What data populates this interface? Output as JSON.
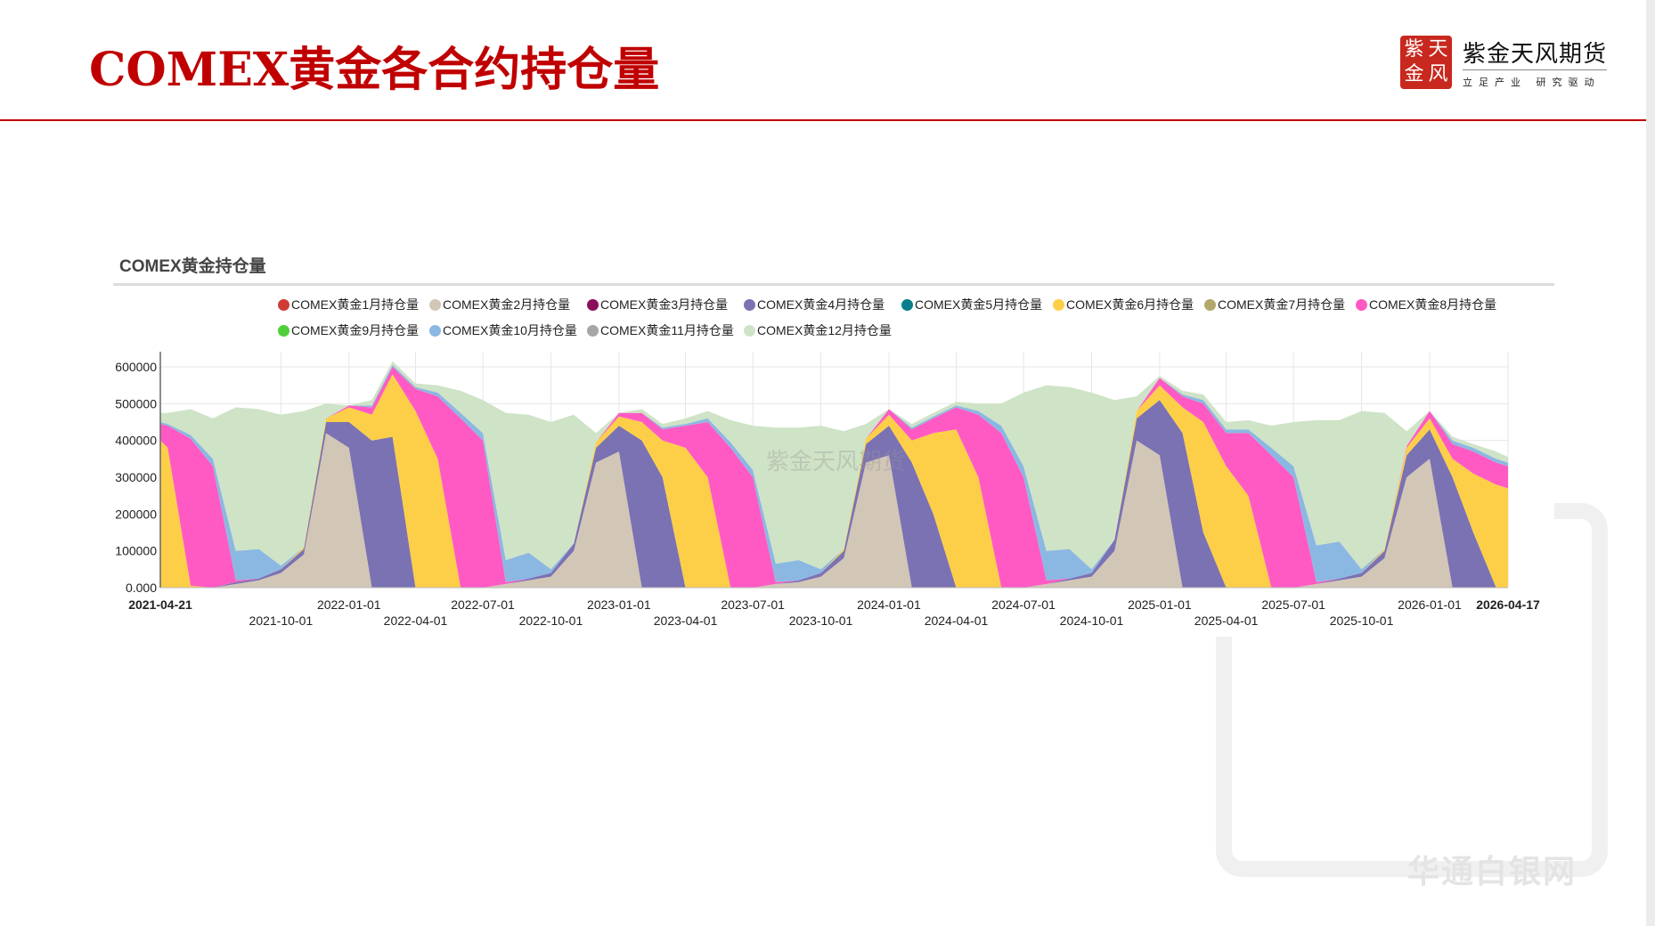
{
  "header": {
    "title": "COMEX黄金各合约持仓量"
  },
  "logo": {
    "seal_chars": [
      "紫",
      "天",
      "金",
      "风"
    ],
    "brand": "紫金天风期货",
    "slogan": "立足产业 研究驱动"
  },
  "watermark": {
    "chart": "紫金天风期货",
    "site": "华通白银网"
  },
  "colors": {
    "accent": "#c00000"
  },
  "chart_data": {
    "type": "area",
    "stacked": true,
    "title": "COMEX黄金持仓量",
    "xlabel": "",
    "ylabel": "",
    "ylim": [
      0,
      650000
    ],
    "xlim": [
      "2021-04-21",
      "2026-04-17"
    ],
    "grid": true,
    "legend_position": "top",
    "y_ticks": [
      "0.000",
      "100000",
      "200000",
      "300000",
      "400000",
      "500000",
      "600000"
    ],
    "y_tick_values": [
      0,
      100000,
      200000,
      300000,
      400000,
      500000,
      600000
    ],
    "x_ticks_row1": [
      "2021-04-21",
      "2022-01-01",
      "2022-07-01",
      "2023-01-01",
      "2023-07-01",
      "2024-01-01",
      "2024-07-01",
      "2025-01-01",
      "2025-07-01",
      "2026-01-01",
      "2026-04-17"
    ],
    "x_ticks_row2": [
      "2021-10-01",
      "2022-04-01",
      "2022-10-01",
      "2023-04-01",
      "2023-10-01",
      "2024-04-01",
      "2024-10-01",
      "2025-04-01",
      "2025-10-01"
    ],
    "x": [
      "2021-04-21",
      "2021-05-01",
      "2021-06-01",
      "2021-07-01",
      "2021-08-01",
      "2021-09-01",
      "2021-10-01",
      "2021-11-01",
      "2021-12-01",
      "2022-01-01",
      "2022-02-01",
      "2022-03-01",
      "2022-04-01",
      "2022-05-01",
      "2022-06-01",
      "2022-07-01",
      "2022-08-01",
      "2022-09-01",
      "2022-10-01",
      "2022-11-01",
      "2022-12-01",
      "2023-01-01",
      "2023-02-01",
      "2023-03-01",
      "2023-04-01",
      "2023-05-01",
      "2023-06-01",
      "2023-07-01",
      "2023-08-01",
      "2023-09-01",
      "2023-10-01",
      "2023-11-01",
      "2023-12-01",
      "2024-01-01",
      "2024-02-01",
      "2024-03-01",
      "2024-04-01",
      "2024-05-01",
      "2024-06-01",
      "2024-07-01",
      "2024-08-01",
      "2024-09-01",
      "2024-10-01",
      "2024-11-01",
      "2024-12-01",
      "2025-01-01",
      "2025-02-01",
      "2025-03-01",
      "2025-04-01",
      "2025-05-01",
      "2025-06-01",
      "2025-07-01",
      "2025-08-01",
      "2025-09-01",
      "2025-10-01",
      "2025-11-01",
      "2025-12-01",
      "2026-01-01",
      "2026-02-01",
      "2026-03-01",
      "2026-04-01",
      "2026-04-17"
    ],
    "series": [
      {
        "name": "COMEX黄金1月持仓量",
        "color": "#d03b36",
        "values": [
          0,
          0,
          0,
          0,
          0,
          0,
          0,
          0,
          0,
          0,
          0,
          0,
          0,
          0,
          0,
          0,
          0,
          0,
          0,
          0,
          0,
          0,
          0,
          0,
          0,
          0,
          0,
          0,
          0,
          0,
          0,
          0,
          0,
          0,
          0,
          0,
          0,
          0,
          0,
          0,
          0,
          0,
          0,
          0,
          0,
          0,
          0,
          0,
          0,
          0,
          0,
          0,
          0,
          0,
          0,
          0,
          0,
          0,
          0,
          0,
          0,
          0
        ]
      },
      {
        "name": "COMEX黄金2月持仓量",
        "color": "#d2c6b6",
        "values": [
          0,
          0,
          0,
          0,
          10000,
          20000,
          40000,
          90000,
          420000,
          380000,
          0,
          0,
          0,
          0,
          0,
          0,
          10000,
          20000,
          30000,
          100000,
          340000,
          370000,
          0,
          0,
          0,
          0,
          0,
          0,
          10000,
          15000,
          30000,
          80000,
          340000,
          360000,
          0,
          0,
          0,
          0,
          0,
          0,
          10000,
          20000,
          30000,
          100000,
          400000,
          360000,
          0,
          0,
          0,
          0,
          0,
          0,
          10000,
          20000,
          30000,
          80000,
          300000,
          350000,
          0,
          0,
          0,
          0
        ]
      },
      {
        "name": "COMEX黄金3月持仓量",
        "color": "#8b0f5a",
        "values": [
          0,
          0,
          0,
          0,
          0,
          0,
          0,
          0,
          0,
          0,
          0,
          0,
          0,
          0,
          0,
          0,
          0,
          0,
          0,
          0,
          0,
          0,
          0,
          0,
          0,
          0,
          0,
          0,
          0,
          0,
          0,
          0,
          0,
          0,
          0,
          0,
          0,
          0,
          0,
          0,
          0,
          0,
          0,
          0,
          0,
          0,
          0,
          0,
          0,
          0,
          0,
          0,
          0,
          0,
          0,
          0,
          0,
          0,
          0,
          0,
          0,
          0
        ]
      },
      {
        "name": "COMEX黄金4月持仓量",
        "color": "#7b72b3",
        "values": [
          0,
          0,
          0,
          0,
          5000,
          5000,
          10000,
          15000,
          30000,
          70000,
          400000,
          410000,
          0,
          0,
          0,
          0,
          0,
          5000,
          10000,
          20000,
          40000,
          70000,
          400000,
          300000,
          0,
          0,
          0,
          0,
          0,
          5000,
          10000,
          20000,
          50000,
          80000,
          340000,
          200000,
          0,
          0,
          0,
          0,
          0,
          5000,
          10000,
          30000,
          60000,
          150000,
          420000,
          150000,
          0,
          0,
          0,
          0,
          0,
          5000,
          10000,
          20000,
          60000,
          80000,
          300000,
          150000,
          0,
          0
        ]
      },
      {
        "name": "COMEX黄金5月持仓量",
        "color": "#0a7f8a",
        "values": [
          0,
          0,
          0,
          0,
          0,
          0,
          0,
          0,
          0,
          0,
          0,
          0,
          0,
          0,
          0,
          0,
          0,
          0,
          0,
          0,
          0,
          0,
          0,
          0,
          0,
          0,
          0,
          0,
          0,
          0,
          0,
          0,
          0,
          0,
          0,
          0,
          0,
          0,
          0,
          0,
          0,
          0,
          0,
          0,
          0,
          0,
          0,
          0,
          0,
          0,
          0,
          0,
          0,
          0,
          0,
          0,
          0,
          0,
          0,
          0,
          0,
          0
        ]
      },
      {
        "name": "COMEX黄金6月持仓量",
        "color": "#fdcf48",
        "values": [
          400000,
          380000,
          5000,
          0,
          0,
          0,
          0,
          5000,
          10000,
          40000,
          70000,
          170000,
          480000,
          350000,
          0,
          0,
          0,
          0,
          0,
          0,
          15000,
          25000,
          50000,
          100000,
          380000,
          300000,
          0,
          0,
          0,
          0,
          0,
          5000,
          15000,
          30000,
          60000,
          220000,
          430000,
          300000,
          0,
          0,
          0,
          0,
          0,
          0,
          20000,
          40000,
          70000,
          300000,
          330000,
          250000,
          0,
          0,
          0,
          0,
          0,
          5000,
          20000,
          30000,
          50000,
          160000,
          280000,
          270000
        ]
      },
      {
        "name": "COMEX黄金7月持仓量",
        "color": "#b3a76b",
        "values": [
          0,
          0,
          0,
          0,
          0,
          0,
          0,
          0,
          0,
          0,
          0,
          0,
          0,
          0,
          0,
          0,
          0,
          0,
          0,
          0,
          0,
          0,
          0,
          0,
          0,
          0,
          0,
          0,
          0,
          0,
          0,
          0,
          0,
          0,
          0,
          0,
          0,
          0,
          0,
          0,
          0,
          0,
          0,
          0,
          0,
          0,
          0,
          0,
          0,
          0,
          0,
          0,
          0,
          0,
          0,
          0,
          0,
          0,
          0,
          0,
          0,
          0
        ]
      },
      {
        "name": "COMEX黄金8月持仓量",
        "color": "#ff5ac3",
        "values": [
          45000,
          60000,
          400000,
          330000,
          5000,
          0,
          0,
          0,
          0,
          5000,
          20000,
          20000,
          60000,
          170000,
          460000,
          400000,
          5000,
          0,
          0,
          0,
          0,
          10000,
          25000,
          30000,
          60000,
          150000,
          380000,
          300000,
          5000,
          0,
          0,
          0,
          0,
          15000,
          30000,
          40000,
          60000,
          170000,
          420000,
          300000,
          10000,
          0,
          0,
          0,
          0,
          20000,
          30000,
          50000,
          90000,
          170000,
          360000,
          300000,
          5000,
          0,
          0,
          0,
          5000,
          20000,
          40000,
          60000,
          60000,
          60000
        ]
      },
      {
        "name": "COMEX黄金9月持仓量",
        "color": "#4fd03a",
        "values": [
          0,
          0,
          0,
          0,
          0,
          0,
          0,
          0,
          0,
          0,
          0,
          0,
          0,
          0,
          0,
          0,
          0,
          0,
          0,
          0,
          0,
          0,
          0,
          0,
          0,
          0,
          0,
          0,
          0,
          0,
          0,
          0,
          0,
          0,
          0,
          0,
          0,
          0,
          0,
          0,
          0,
          0,
          0,
          0,
          0,
          0,
          0,
          0,
          0,
          0,
          0,
          0,
          0,
          0,
          0,
          0,
          0,
          0,
          0,
          0,
          0,
          0
        ]
      },
      {
        "name": "COMEX黄金10月持仓量",
        "color": "#8bb8e2",
        "values": [
          5000,
          5000,
          10000,
          20000,
          80000,
          80000,
          10000,
          0,
          0,
          0,
          5000,
          5000,
          5000,
          10000,
          15000,
          20000,
          60000,
          70000,
          10000,
          0,
          0,
          0,
          0,
          5000,
          5000,
          10000,
          15000,
          20000,
          50000,
          55000,
          10000,
          0,
          0,
          0,
          5000,
          5000,
          5000,
          10000,
          20000,
          30000,
          80000,
          80000,
          10000,
          0,
          0,
          0,
          5000,
          10000,
          10000,
          10000,
          20000,
          30000,
          100000,
          100000,
          10000,
          0,
          0,
          0,
          10000,
          10000,
          10000,
          10000
        ]
      },
      {
        "name": "COMEX黄金11月持仓量",
        "color": "#a6a6a6",
        "values": [
          0,
          0,
          0,
          0,
          0,
          0,
          0,
          0,
          0,
          0,
          0,
          0,
          0,
          0,
          0,
          0,
          0,
          0,
          0,
          0,
          0,
          0,
          0,
          0,
          0,
          0,
          0,
          0,
          0,
          0,
          0,
          0,
          0,
          0,
          0,
          0,
          0,
          0,
          0,
          0,
          0,
          0,
          0,
          0,
          0,
          0,
          0,
          0,
          0,
          0,
          0,
          0,
          0,
          0,
          0,
          0,
          0,
          0,
          0,
          0,
          0,
          0
        ]
      },
      {
        "name": "COMEX黄金12月持仓量",
        "color": "#cfe3c6",
        "values": [
          25000,
          30000,
          70000,
          110000,
          390000,
          380000,
          410000,
          370000,
          40000,
          0,
          15000,
          10000,
          10000,
          20000,
          60000,
          90000,
          400000,
          375000,
          400000,
          350000,
          25000,
          0,
          10000,
          10000,
          15000,
          20000,
          60000,
          120000,
          370000,
          360000,
          390000,
          320000,
          40000,
          0,
          10000,
          10000,
          10000,
          20000,
          60000,
          200000,
          450000,
          440000,
          480000,
          380000,
          40000,
          5000,
          10000,
          15000,
          20000,
          25000,
          60000,
          120000,
          340000,
          330000,
          430000,
          370000,
          40000,
          0,
          10000,
          10000,
          20000,
          15000
        ]
      }
    ]
  }
}
